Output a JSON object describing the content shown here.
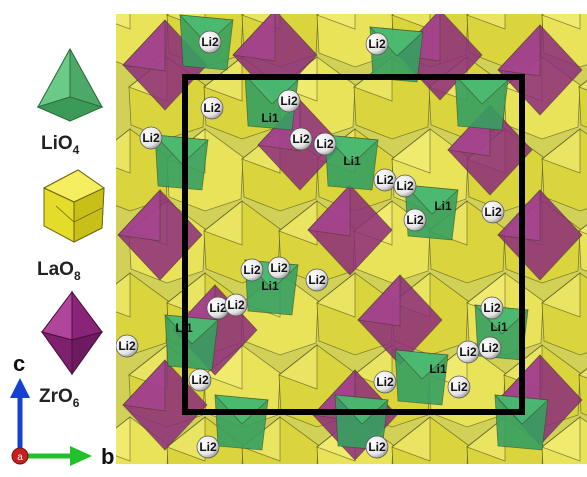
{
  "legend": {
    "items": [
      {
        "id": "lio4",
        "formula_base": "LiO",
        "formula_sub": "4",
        "color": "#4fae6a",
        "shape": "tetrahedron"
      },
      {
        "id": "lao8",
        "formula_base": "LaO",
        "formula_sub": "8",
        "color": "#e8e030",
        "shape": "polyhedron"
      },
      {
        "id": "zro6",
        "formula_base": "ZrO",
        "formula_sub": "6",
        "color": "#9a2f86",
        "shape": "octahedron"
      }
    ]
  },
  "axes": {
    "c_label": "c",
    "b_label": "b",
    "a_label": "a",
    "c_color": "#1540d0",
    "b_color": "#22c02a",
    "a_color": "#c42020"
  },
  "structure": {
    "site_labels": [
      "Li1",
      "Li2"
    ],
    "colors": {
      "li_polyhedra": "#35a060",
      "la_polyhedra": "#d8d42c",
      "zr_polyhedra": "#8c2a7c",
      "cell_border": "#000000",
      "atom_fill": "#f4f4f4"
    }
  }
}
